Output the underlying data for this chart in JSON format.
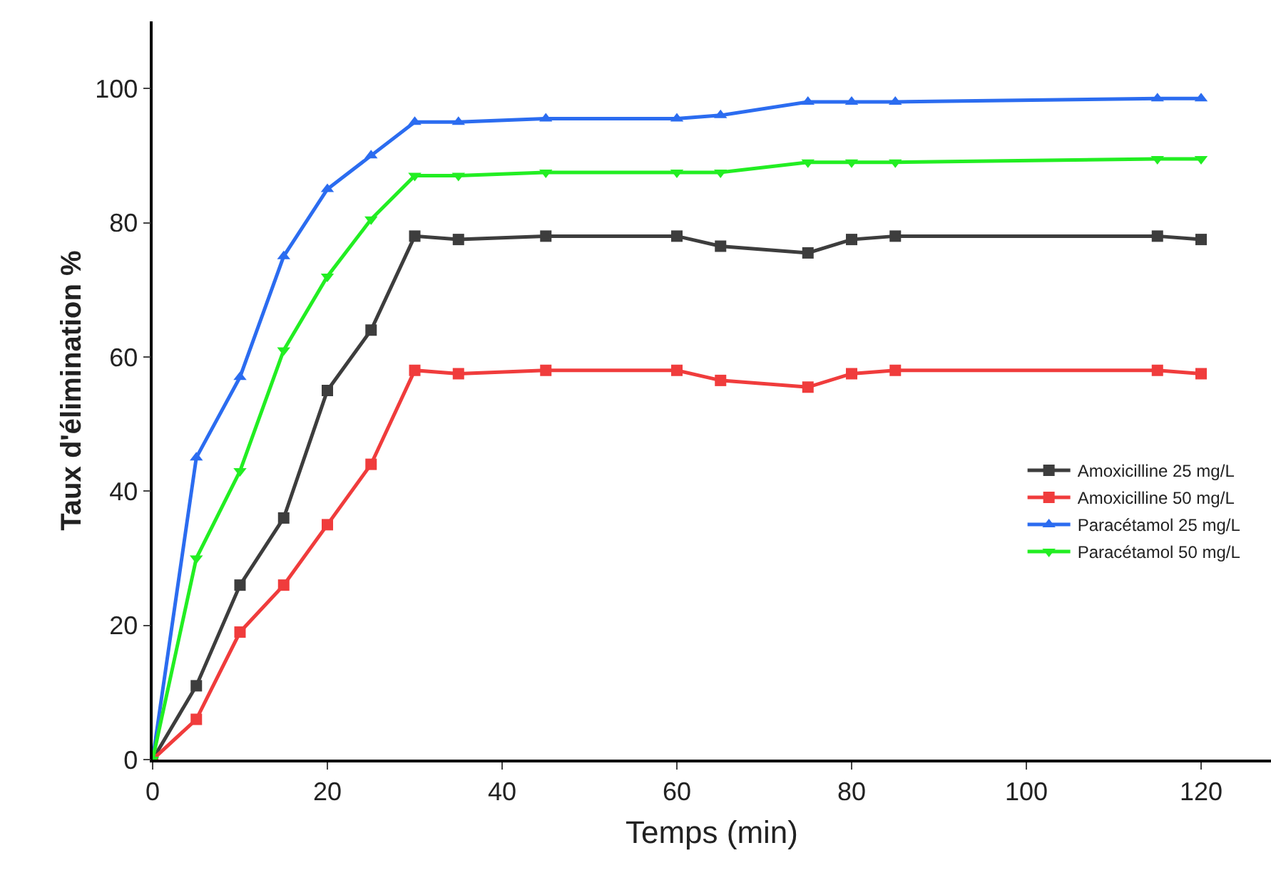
{
  "chart_data": {
    "type": "line",
    "xlabel": "Temps (min)",
    "ylabel": "Taux d'élimination %",
    "x": [
      0,
      5,
      10,
      15,
      20,
      25,
      30,
      35,
      45,
      60,
      65,
      75,
      80,
      85,
      115,
      120
    ],
    "series": [
      {
        "name": "Amoxicilline 25 mg/L",
        "color": "#3d3d3d",
        "marker": "square",
        "values": [
          0,
          11,
          26,
          36,
          55,
          64,
          78,
          77.5,
          78,
          78,
          76.5,
          75.5,
          77.5,
          78,
          78,
          77.5
        ]
      },
      {
        "name": "Amoxicilline 50 mg/L",
        "color": "#f03c3c",
        "marker": "square",
        "values": [
          0,
          6,
          19,
          26,
          35,
          44,
          58,
          57.5,
          58,
          58,
          56.5,
          55.5,
          57.5,
          58,
          58,
          57.5
        ]
      },
      {
        "name": "Paracétamol 25 mg/L",
        "color": "#2b6cf0",
        "marker": "triangle",
        "values": [
          0,
          45,
          57,
          75,
          85,
          90,
          95,
          95,
          95.5,
          95.5,
          96,
          98,
          98,
          98,
          98.5,
          98.5
        ]
      },
      {
        "name": "Paracétamol 50 mg/L",
        "color": "#22ee22",
        "marker": "triangle-down",
        "values": [
          0,
          30,
          43,
          61,
          72,
          80.5,
          87,
          87,
          87.5,
          87.5,
          87.5,
          89,
          89,
          89,
          89.5,
          89.5
        ]
      }
    ],
    "xlim": [
      0,
      128
    ],
    "ylim": [
      0,
      110
    ],
    "xticks": [
      0,
      20,
      40,
      60,
      80,
      100,
      120
    ],
    "yticks": [
      0,
      20,
      40,
      60,
      80,
      100
    ],
    "grid": false,
    "legend": "bottom right",
    "line_style": "solid"
  }
}
